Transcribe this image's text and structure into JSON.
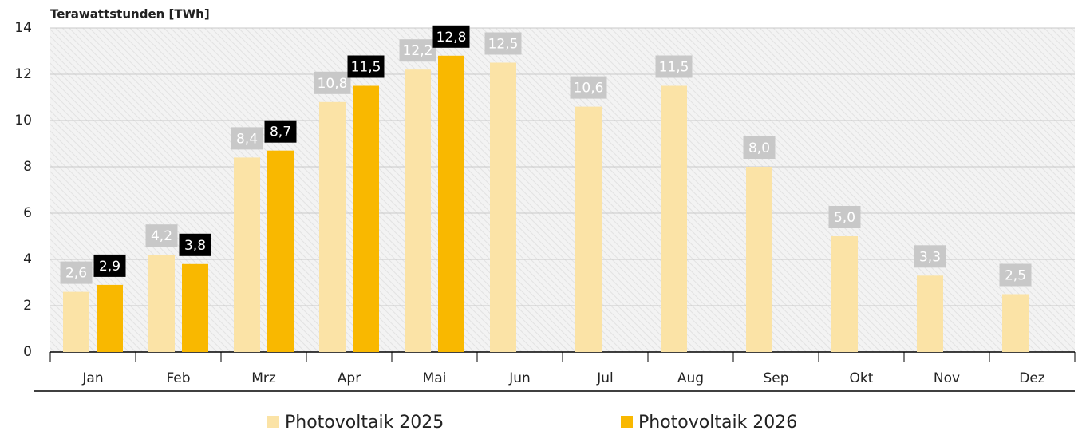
{
  "chart_data": {
    "type": "bar",
    "y_label": "Terawattstunden [TWh]",
    "categories": [
      "Jan",
      "Feb",
      "Mrz",
      "Apr",
      "Mai",
      "Jun",
      "Jul",
      "Aug",
      "Sep",
      "Okt",
      "Nov",
      "Dez"
    ],
    "series": [
      {
        "name": "Photovoltaik 2025",
        "color": "#fbe3a6",
        "label_color": "#c8c8c8",
        "values": [
          2.6,
          4.2,
          8.4,
          10.8,
          12.2,
          12.5,
          10.6,
          11.5,
          8.0,
          5.0,
          3.3,
          2.5
        ],
        "value_labels": [
          "2,6",
          "4,2",
          "8,4",
          "10,8",
          "12,2",
          "12,5",
          "10,6",
          "11,5",
          "8,0",
          "5,0",
          "3,3",
          "2,5"
        ]
      },
      {
        "name": "Photovoltaik 2026",
        "color": "#f9b800",
        "label_color": "#000000",
        "values": [
          2.9,
          3.8,
          8.7,
          11.5,
          12.8,
          null,
          null,
          null,
          null,
          null,
          null,
          null
        ],
        "value_labels": [
          "2,9",
          "3,8",
          "8,7",
          "11,5",
          "12,8",
          null,
          null,
          null,
          null,
          null,
          null,
          null
        ]
      }
    ],
    "ylim": [
      0,
      14
    ],
    "yticks": [
      0,
      2,
      4,
      6,
      8,
      10,
      12,
      14
    ],
    "grid": true
  }
}
